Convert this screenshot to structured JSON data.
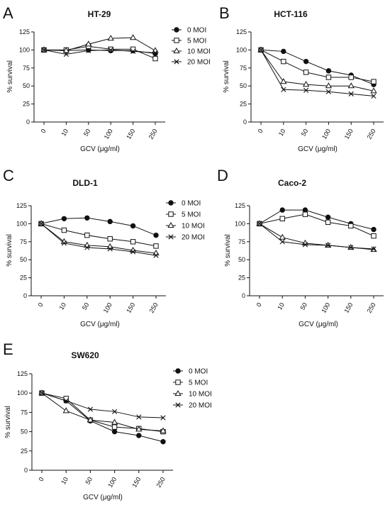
{
  "chart_data": [
    {
      "panel": "A",
      "type": "line",
      "title": "HT-29",
      "xlabel": "GCV (μg/ml)",
      "ylabel": "% survival",
      "categories": [
        "0",
        "10",
        "50",
        "100",
        "150",
        "250"
      ],
      "ylim": [
        0,
        125
      ],
      "yticks": [
        "0",
        "25",
        "50",
        "75",
        "100",
        "125"
      ],
      "series": [
        {
          "name": "0 MOI",
          "marker": "circle",
          "values": [
            100,
            99,
            100,
            99,
            99,
            95
          ]
        },
        {
          "name": "5 MOI",
          "marker": "square",
          "values": [
            100,
            100,
            105,
            101,
            101,
            88
          ]
        },
        {
          "name": "10 MOI",
          "marker": "triangle",
          "values": [
            100,
            99,
            108,
            116,
            117,
            99
          ]
        },
        {
          "name": "20 MOI",
          "marker": "x",
          "values": [
            100,
            94,
            99,
            100,
            98,
            96
          ]
        }
      ]
    },
    {
      "panel": "B",
      "type": "line",
      "title": "HCT-116",
      "xlabel": "GCV (μg/ml)",
      "ylabel": "% survival",
      "categories": [
        "0",
        "10",
        "50",
        "100",
        "150",
        "250"
      ],
      "ylim": [
        0,
        125
      ],
      "yticks": [
        "0",
        "25",
        "50",
        "75",
        "100",
        "125"
      ],
      "series": [
        {
          "name": "0 MOI",
          "marker": "circle",
          "values": [
            100,
            98,
            84,
            71,
            65,
            52
          ]
        },
        {
          "name": "5 MOI",
          "marker": "square",
          "values": [
            100,
            84,
            69,
            62,
            62,
            56
          ]
        },
        {
          "name": "10 MOI",
          "marker": "triangle",
          "values": [
            100,
            56,
            52,
            50,
            50,
            43
          ]
        },
        {
          "name": "20 MOI",
          "marker": "x",
          "values": [
            100,
            45,
            44,
            42,
            39,
            36
          ]
        }
      ]
    },
    {
      "panel": "C",
      "type": "line",
      "title": "DLD-1",
      "xlabel": "GCV (μg/ml)",
      "ylabel": "% survival",
      "categories": [
        "0",
        "10",
        "50",
        "100",
        "150",
        "250"
      ],
      "ylim": [
        0,
        125
      ],
      "yticks": [
        "0",
        "25",
        "50",
        "75",
        "100",
        "125"
      ],
      "series": [
        {
          "name": "0 MOI",
          "marker": "circle",
          "values": [
            100,
            107,
            108,
            103,
            97,
            84
          ]
        },
        {
          "name": "5 MOI",
          "marker": "square",
          "values": [
            100,
            91,
            84,
            79,
            75,
            69
          ]
        },
        {
          "name": "10 MOI",
          "marker": "triangle",
          "values": [
            100,
            75,
            70,
            68,
            63,
            59
          ]
        },
        {
          "name": "20 MOI",
          "marker": "x",
          "values": [
            100,
            73,
            67,
            65,
            61,
            56
          ]
        }
      ]
    },
    {
      "panel": "D",
      "type": "line",
      "title": "Caco-2",
      "xlabel": "GCV (μg/ml)",
      "ylabel": "% survival",
      "categories": [
        "0",
        "10",
        "50",
        "100",
        "150",
        "250"
      ],
      "ylim": [
        0,
        125
      ],
      "yticks": [
        "0",
        "25",
        "50",
        "75",
        "100",
        "125"
      ],
      "series": [
        {
          "name": "0 MOI",
          "marker": "circle",
          "values": [
            100,
            119,
            119,
            109,
            100,
            92
          ]
        },
        {
          "name": "5 MOI",
          "marker": "square",
          "values": [
            100,
            107,
            113,
            102,
            97,
            83
          ]
        },
        {
          "name": "10 MOI",
          "marker": "triangle",
          "values": [
            100,
            81,
            73,
            70,
            67,
            64
          ]
        },
        {
          "name": "20 MOI",
          "marker": "x",
          "values": [
            100,
            75,
            71,
            70,
            67,
            65
          ]
        }
      ]
    },
    {
      "panel": "E",
      "type": "line",
      "title": "SW620",
      "xlabel": "GCV (μg/ml)",
      "ylabel": "% survival",
      "categories": [
        "0",
        "10",
        "50",
        "100",
        "150",
        "250"
      ],
      "ylim": [
        0,
        125
      ],
      "yticks": [
        "0",
        "25",
        "50",
        "75",
        "100",
        "125"
      ],
      "series": [
        {
          "name": "0 MOI",
          "marker": "circle",
          "values": [
            100,
            90,
            64,
            50,
            45,
            37
          ]
        },
        {
          "name": "5 MOI",
          "marker": "square",
          "values": [
            100,
            93,
            65,
            56,
            54,
            50
          ]
        },
        {
          "name": "10 MOI",
          "marker": "triangle",
          "values": [
            100,
            77,
            65,
            62,
            53,
            51
          ]
        },
        {
          "name": "20 MOI",
          "marker": "x",
          "values": [
            100,
            90,
            79,
            76,
            69,
            68
          ]
        }
      ]
    }
  ]
}
